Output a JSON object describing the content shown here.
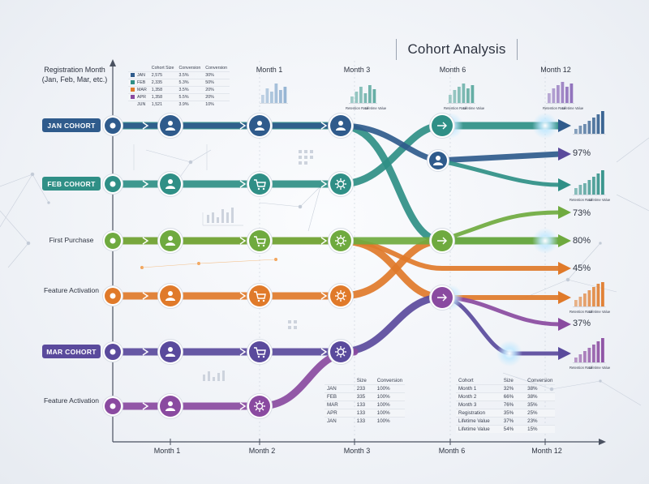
{
  "title": "Cohort Analysis",
  "y_axis_label": [
    "Registration Month",
    "(Jan, Feb, Mar, etc.)"
  ],
  "top_columns": [
    "Month 1",
    "Month 3",
    "Month 6",
    "Month 12"
  ],
  "bottom_columns": [
    "Month 1",
    "Month 2",
    "Month 3",
    "Month 6",
    "Month 12"
  ],
  "rows": [
    {
      "label": "JAN COHORT",
      "style": "pill",
      "color": "#2f5b8c"
    },
    {
      "label": "FEB COHORT",
      "style": "pill",
      "color": "#2f8f86"
    },
    {
      "label": "First Purchase",
      "style": "text",
      "color": "#6faa3f"
    },
    {
      "label": "Feature Activation",
      "style": "text",
      "color": "#e07a2a"
    },
    {
      "label": "MAR COHORT",
      "style": "pill",
      "color": "#5a4a9c"
    },
    {
      "label": "Feature Activation",
      "style": "text",
      "color": "#8a4aa0"
    }
  ],
  "percentages": [
    "97%",
    "73%",
    "80%",
    "45%",
    "37%"
  ],
  "legend_labels": {
    "retention": "Retention Rate",
    "lifetime": "Lifetime Value"
  },
  "top_table": {
    "headers": [
      "",
      "Cohort Size",
      "Conversion",
      "Conversion"
    ],
    "rows": [
      {
        "swatch": "#2f5b8c",
        "cells": [
          "JAN",
          "2,575",
          "3.5%",
          "30%"
        ]
      },
      {
        "swatch": "#2f8f86",
        "cells": [
          "FEB",
          "2,335",
          "5.3%",
          "50%"
        ]
      },
      {
        "swatch": "#e07a2a",
        "cells": [
          "MAR",
          "1,358",
          "3.5%",
          "20%"
        ]
      },
      {
        "swatch": "#8a4aa0",
        "cells": [
          "APR",
          "1,358",
          "5.5%",
          "20%"
        ]
      },
      {
        "swatch": "",
        "cells": [
          "JUN",
          "1,521",
          "3.9%",
          "10%"
        ]
      }
    ]
  },
  "bottom_table_1": {
    "headers": [
      "",
      "Size",
      "Conversion"
    ],
    "rows": [
      [
        "JAN",
        "233",
        "100%"
      ],
      [
        "FEB",
        "335",
        "100%"
      ],
      [
        "MAR",
        "133",
        "100%"
      ],
      [
        "APR",
        "133",
        "100%"
      ],
      [
        "JAN",
        "133",
        "100%"
      ]
    ]
  },
  "bottom_table_2": {
    "headers": [
      "Cohort",
      "Size",
      "Conversion"
    ],
    "rows": [
      [
        "Month 1",
        "32%",
        "38%"
      ],
      [
        "Month 2",
        "66%",
        "38%"
      ],
      [
        "Month 3",
        "76%",
        "35%"
      ],
      [
        "Registration",
        "35%",
        "25%"
      ],
      [
        "Lifetime Value",
        "37%",
        "23%"
      ],
      [
        "Lifetime Value",
        "54%",
        "15%"
      ]
    ]
  },
  "colors": {
    "blue": "#2f5b8c",
    "teal": "#2f8f86",
    "green": "#6faa3f",
    "orange": "#e07a2a",
    "indigo": "#5a4a9c",
    "purple": "#8a4aa0",
    "axis": "#4a5160"
  },
  "icons": [
    "target-icon",
    "user-icon",
    "cart-icon",
    "gear-icon",
    "arrow-right-icon"
  ]
}
